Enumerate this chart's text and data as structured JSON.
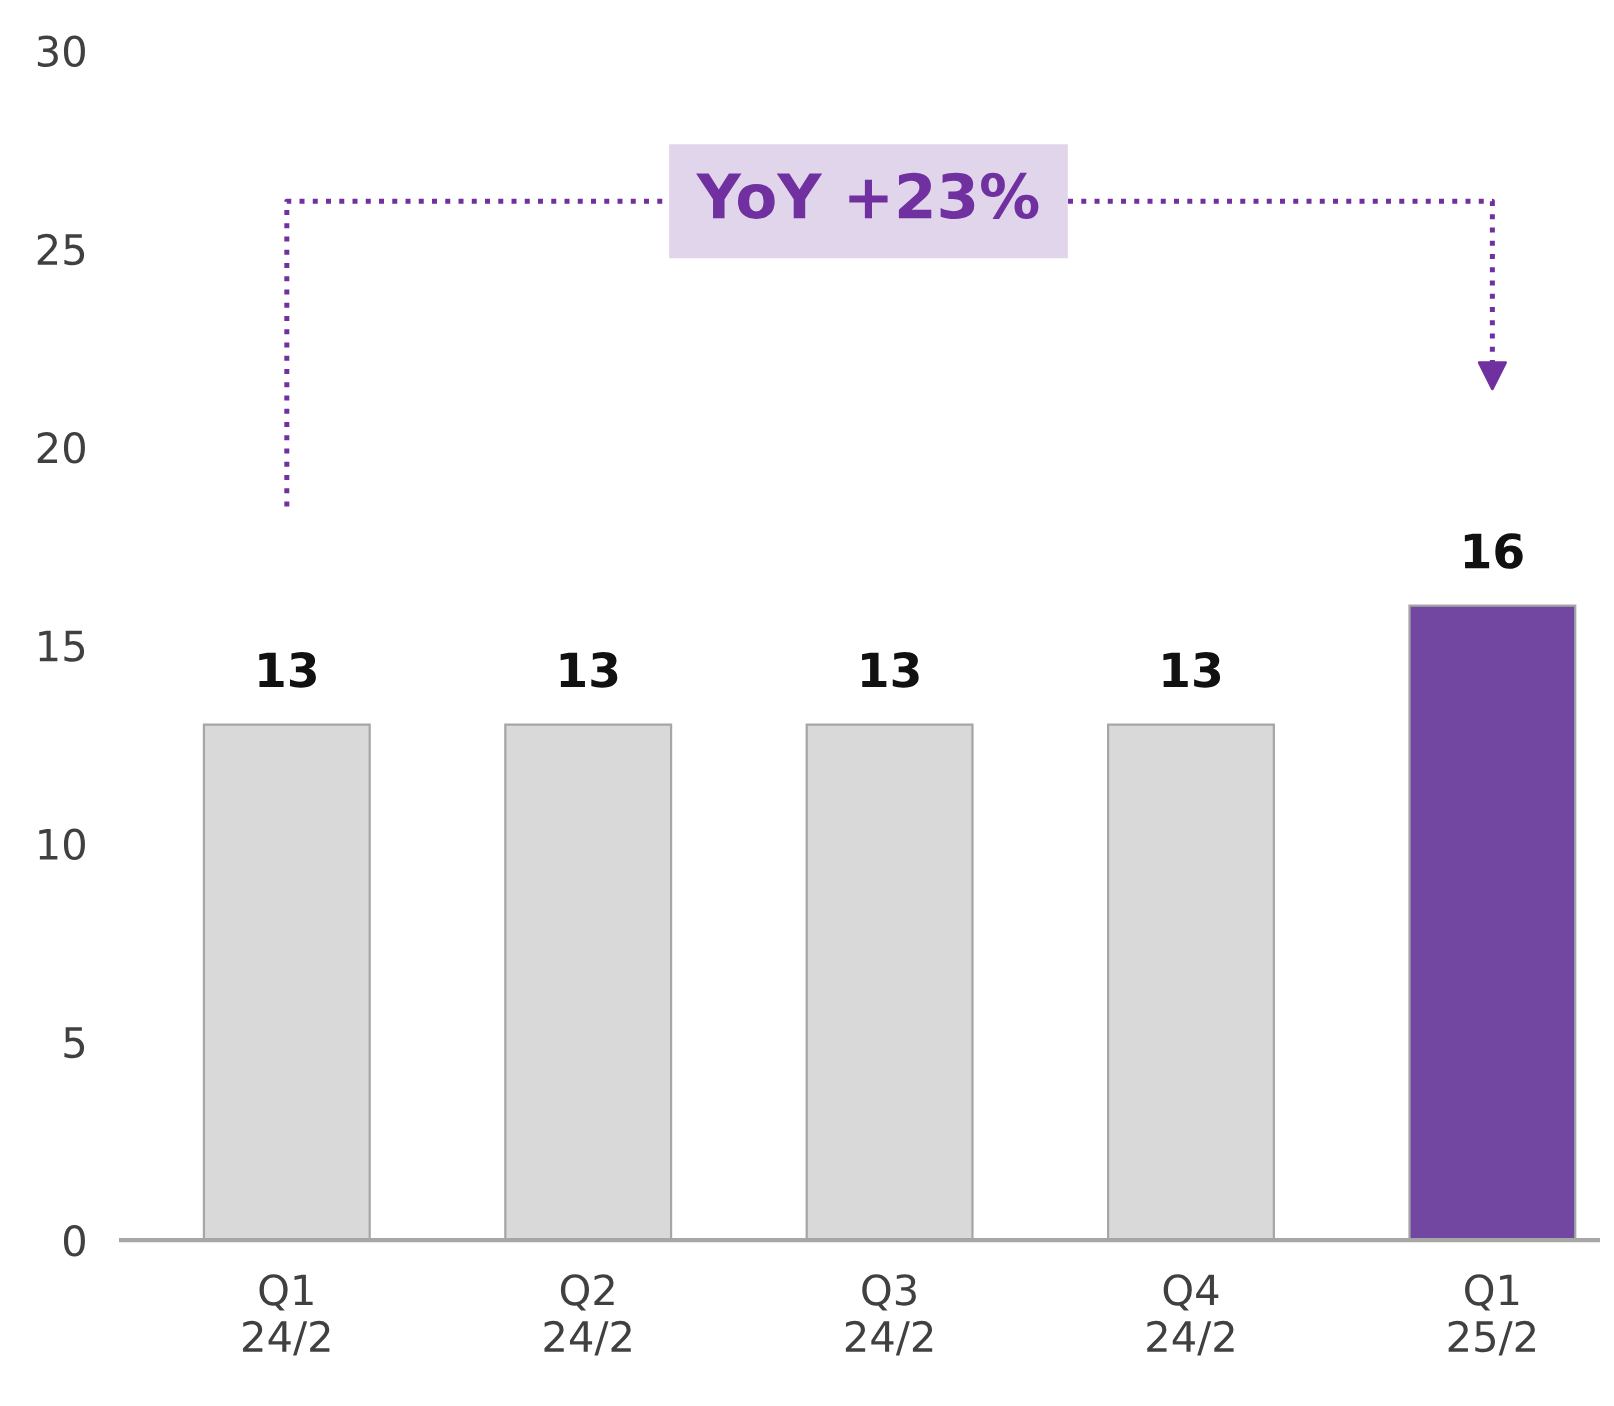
{
  "chart_data": {
    "type": "bar",
    "categories": [
      "Q1\n24/2",
      "Q2\n24/2",
      "Q3\n24/2",
      "Q4\n24/2",
      "Q1\n25/2"
    ],
    "values": [
      13,
      13,
      13,
      13,
      16
    ],
    "colors": [
      "#d9d9d9",
      "#d9d9d9",
      "#d9d9d9",
      "#d9d9d9",
      "#7038b0"
    ],
    "ylim": [
      0,
      30
    ],
    "yticks": [
      0,
      5,
      10,
      15,
      20,
      25,
      30
    ],
    "data_labels": true,
    "grid": false,
    "legend": false,
    "annotations": [
      "YoY +23%"
    ]
  }
}
